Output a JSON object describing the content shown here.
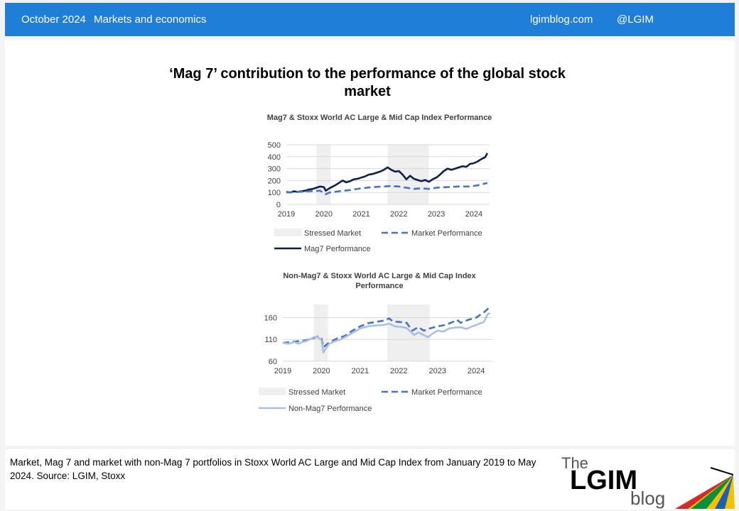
{
  "header": {
    "date": "October 2024",
    "category": "Markets and economics",
    "site": "lgimblog.com",
    "handle": "@LGIM"
  },
  "main_title": "‘Mag 7’ contribution to the performance of the global stock market",
  "caption": "Market, Mag 7 and market with non-Mag 7 portfolios in Stoxx World AC Large and Mid Cap Index from January 2019 to May 2024. Source: LGIM, Stoxx",
  "logo": {
    "the": "The",
    "brand": "LGIM",
    "blog": "blog"
  },
  "colors": {
    "header_bg": "#1f7fd8",
    "mag7": "#0d1f4f",
    "market": "#4472c4",
    "non_mag7": "#a9bfe6",
    "stressed": "#efefef"
  },
  "chart_data": [
    {
      "type": "line",
      "title": "Mag7 & Stoxx World AC Large & Mid Cap Index Performance",
      "xlim": [
        2019.0,
        2024.42
      ],
      "ylim": [
        0,
        500
      ],
      "yticks": [
        "0",
        "100",
        "200",
        "300",
        "400",
        "500"
      ],
      "xticks": [
        "2019",
        "2020",
        "2021",
        "2022",
        "2023",
        "2024"
      ],
      "grid": true,
      "legend_position": "bottom",
      "stressed_periods": [
        [
          2019.8,
          2020.18
        ],
        [
          2021.7,
          2022.8
        ]
      ],
      "legend": {
        "stressed": "Stressed Market",
        "market": "Market Performance",
        "mag7": "Mag7 Performance"
      },
      "series": [
        {
          "name": "Mag7 Performance",
          "style": "solid",
          "x": [
            2019.0,
            2019.1,
            2019.2,
            2019.3,
            2019.4,
            2019.5,
            2019.6,
            2019.7,
            2019.8,
            2019.9,
            2020.0,
            2020.05,
            2020.15,
            2020.3,
            2020.4,
            2020.5,
            2020.6,
            2020.7,
            2020.8,
            2020.9,
            2021.0,
            2021.1,
            2021.2,
            2021.3,
            2021.4,
            2021.5,
            2021.6,
            2021.7,
            2021.8,
            2021.9,
            2022.0,
            2022.1,
            2022.2,
            2022.3,
            2022.4,
            2022.5,
            2022.6,
            2022.7,
            2022.8,
            2022.9,
            2023.0,
            2023.1,
            2023.2,
            2023.3,
            2023.4,
            2023.5,
            2023.6,
            2023.7,
            2023.8,
            2023.9,
            2024.0,
            2024.1,
            2024.2,
            2024.3,
            2024.36
          ],
          "values": [
            105,
            100,
            110,
            105,
            110,
            115,
            125,
            130,
            140,
            150,
            145,
            115,
            135,
            160,
            180,
            200,
            185,
            195,
            210,
            215,
            225,
            235,
            250,
            255,
            265,
            275,
            290,
            310,
            290,
            275,
            280,
            250,
            210,
            240,
            215,
            205,
            195,
            205,
            190,
            210,
            225,
            250,
            280,
            300,
            290,
            300,
            310,
            320,
            315,
            340,
            345,
            360,
            380,
            395,
            430
          ]
        },
        {
          "name": "Market Performance",
          "style": "dashed",
          "x": [
            2019.0,
            2019.3,
            2019.6,
            2019.9,
            2020.05,
            2020.15,
            2020.4,
            2020.7,
            2021.0,
            2021.3,
            2021.6,
            2021.8,
            2022.0,
            2022.2,
            2022.4,
            2022.6,
            2022.8,
            2023.0,
            2023.3,
            2023.6,
            2023.9,
            2024.1,
            2024.36
          ],
          "values": [
            100,
            105,
            110,
            115,
            85,
            100,
            110,
            120,
            135,
            145,
            150,
            155,
            150,
            140,
            130,
            135,
            130,
            140,
            145,
            150,
            150,
            160,
            180
          ]
        }
      ]
    },
    {
      "type": "line",
      "title": "Non-Mag7 & Stoxx World AC Large & Mid Cap Index Performance",
      "xlim": [
        2019.0,
        2024.42
      ],
      "ylim": [
        60,
        190
      ],
      "yticks": [
        "60",
        "110",
        "160"
      ],
      "xticks": [
        "2019",
        "2020",
        "2021",
        "2022",
        "2023",
        "2024"
      ],
      "grid": true,
      "legend_position": "bottom",
      "stressed_periods": [
        [
          2019.8,
          2020.17
        ],
        [
          2021.7,
          2022.8
        ]
      ],
      "legend": {
        "stressed": "Stressed Market",
        "market": "Market Performance",
        "non_mag7": "Non-Mag7 Performance"
      },
      "series": [
        {
          "name": "Market Performance",
          "style": "dashed",
          "x": [
            2019.0,
            2019.2,
            2019.4,
            2019.6,
            2019.8,
            2019.9,
            2020.0,
            2020.05,
            2020.2,
            2020.4,
            2020.6,
            2020.8,
            2021.0,
            2021.2,
            2021.4,
            2021.6,
            2021.75,
            2021.85,
            2022.0,
            2022.2,
            2022.35,
            2022.5,
            2022.65,
            2022.8,
            2023.0,
            2023.2,
            2023.4,
            2023.5,
            2023.6,
            2023.8,
            2024.0,
            2024.2,
            2024.3,
            2024.36
          ],
          "values": [
            102,
            104,
            106,
            108,
            113,
            117,
            112,
            92,
            103,
            112,
            118,
            130,
            140,
            147,
            150,
            153,
            158,
            151,
            150,
            148,
            130,
            138,
            130,
            135,
            140,
            143,
            150,
            155,
            148,
            155,
            160,
            172,
            180,
            183
          ]
        },
        {
          "name": "Non-Mag7 Performance",
          "style": "solid",
          "x": [
            2019.0,
            2019.15,
            2019.3,
            2019.4,
            2019.5,
            2019.6,
            2019.7,
            2019.8,
            2019.9,
            2020.0,
            2020.05,
            2020.1,
            2020.2,
            2020.35,
            2020.5,
            2020.65,
            2020.8,
            2021.0,
            2021.2,
            2021.4,
            2021.6,
            2021.75,
            2021.9,
            2022.1,
            2022.2,
            2022.3,
            2022.4,
            2022.5,
            2022.6,
            2022.75,
            2022.9,
            2023.0,
            2023.15,
            2023.3,
            2023.45,
            2023.6,
            2023.75,
            2023.9,
            2024.05,
            2024.2,
            2024.3,
            2024.36
          ],
          "values": [
            102,
            100,
            104,
            100,
            104,
            106,
            110,
            115,
            116,
            108,
            80,
            88,
            100,
            106,
            110,
            117,
            125,
            135,
            140,
            142,
            143,
            146,
            140,
            138,
            136,
            128,
            120,
            126,
            122,
            115,
            125,
            130,
            128,
            135,
            137,
            138,
            134,
            140,
            145,
            150,
            168,
            170
          ]
        }
      ]
    }
  ]
}
